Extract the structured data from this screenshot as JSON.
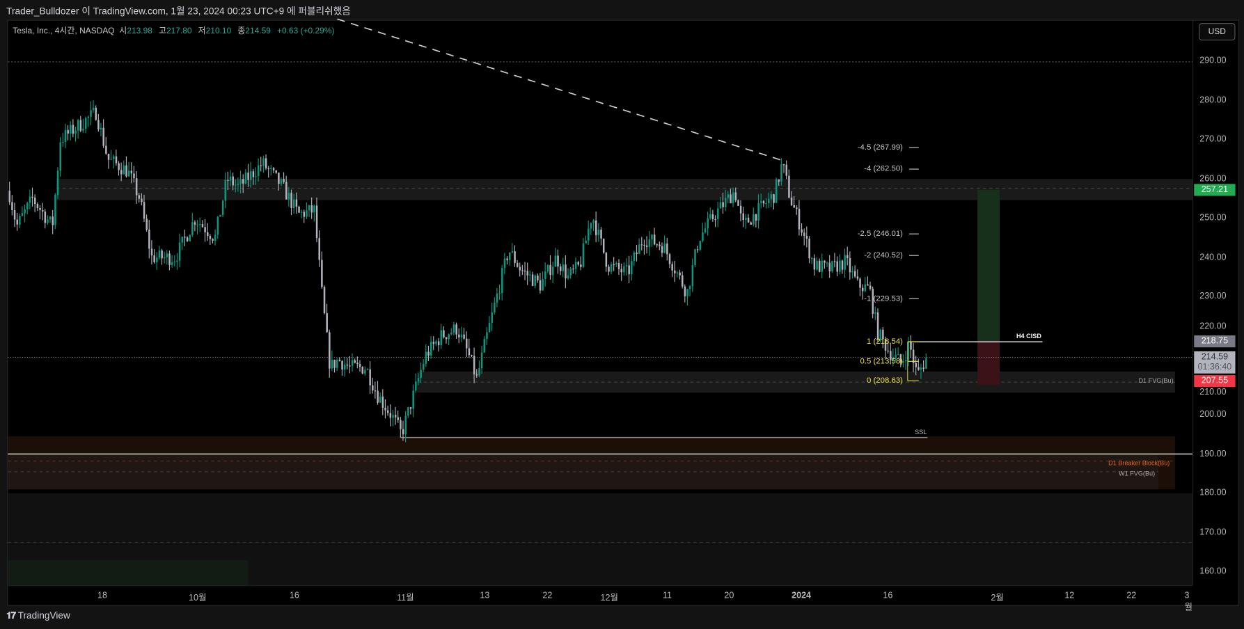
{
  "publish_line": "Trader_Bulldozer 이 TradingView.com, 1월 23, 2024 00:23 UTC+9 에 퍼블리쉬했음",
  "symbol": {
    "name": "Tesla, Inc., 4시간, NASDAQ",
    "o_label": "시",
    "open": "213.98",
    "h_label": "고",
    "high": "217.80",
    "l_label": "저",
    "low": "210.10",
    "c_label": "종",
    "close": "214.59",
    "change": "+0.63 (+0.29%)"
  },
  "currency_button": "USD",
  "price_axis": [
    "290.00",
    "280.00",
    "270.00",
    "260.00",
    "250.00",
    "240.00",
    "230.00",
    "220.00",
    "210.00",
    "200.00",
    "190.00",
    "180.00",
    "170.00",
    "160.00"
  ],
  "price_values": [
    290,
    280,
    270,
    260,
    250,
    240,
    230,
    220,
    210,
    200,
    190,
    180,
    170,
    160
  ],
  "badges": {
    "target": "257.21",
    "entry": "218.75",
    "last": "214.59",
    "countdown": "01:36:40",
    "stop": "207.55"
  },
  "colors": {
    "up": "#089981",
    "down": "#b2b5be",
    "target": "#22ab52",
    "stop": "#f23645",
    "fib": "#f2e33a",
    "breaker": "#e8651c"
  },
  "time_axis": [
    "18",
    "10월",
    "16",
    "11월",
    "13",
    "22",
    "12월",
    "11",
    "20",
    "2024",
    "16",
    "2월",
    "12",
    "22",
    "3월"
  ],
  "fib_levels": [
    {
      "label": "-4.5 (267.99)",
      "price": 267.99,
      "yellow": false
    },
    {
      "label": "-4 (262.50)",
      "price": 262.5,
      "yellow": false
    },
    {
      "label": "-2.5 (246.01)",
      "price": 246.01,
      "yellow": false
    },
    {
      "label": "-2 (240.52)",
      "price": 240.52,
      "yellow": false
    },
    {
      "label": "-1 (229.53)",
      "price": 229.53,
      "yellow": false
    },
    {
      "label": "1 (218.54)",
      "price": 218.54,
      "yellow": true
    },
    {
      "label": "0.5 (213.58)",
      "price": 213.58,
      "yellow": true
    },
    {
      "label": "0 (208.63)",
      "price": 208.63,
      "yellow": true
    }
  ],
  "annotations": {
    "cisd": "H4 CISD",
    "ssl": "SSL",
    "d1_fvg": "D1 FVG(Bu)",
    "breaker": "D1 Breaker Block(Bu)",
    "w1_fvg": "W1 FVG(Bu)"
  },
  "footer_brand": "TradingView"
}
